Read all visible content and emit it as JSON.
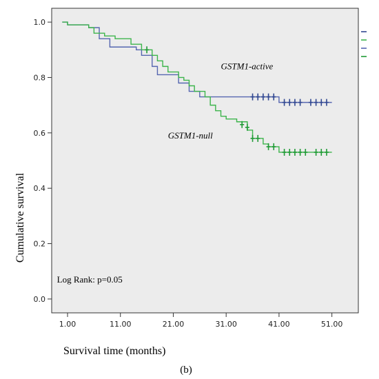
{
  "chart_data": {
    "type": "line",
    "subtype": "kaplan-meier step plot",
    "title": "",
    "xlabel": "Survival time (months)",
    "ylabel": "Cumulative survival",
    "xlim": [
      -2,
      56
    ],
    "ylim": [
      -0.05,
      1.05
    ],
    "x_ticks": [
      1,
      11,
      21,
      31,
      41,
      51
    ],
    "x_tick_labels": [
      "1.00",
      "11.00",
      "21.00",
      "31.00",
      "41.00",
      "51.00"
    ],
    "y_ticks": [
      0.0,
      0.2,
      0.4,
      0.6,
      0.8,
      1.0
    ],
    "y_tick_labels": [
      "0.0",
      "0.2",
      "0.4",
      "0.6",
      "0.8",
      "1.0"
    ],
    "grid": false,
    "background_color": "#ececec",
    "series": [
      {
        "name": "GSTM1-active",
        "color": "#5566b0",
        "censor_color": "#2f4690",
        "steps": [
          [
            0,
            1.0
          ],
          [
            1,
            0.99
          ],
          [
            5,
            0.98
          ],
          [
            7,
            0.94
          ],
          [
            9,
            0.91
          ],
          [
            14,
            0.9
          ],
          [
            15,
            0.88
          ],
          [
            17,
            0.84
          ],
          [
            18,
            0.81
          ],
          [
            22,
            0.78
          ],
          [
            24,
            0.75
          ],
          [
            26,
            0.73
          ],
          [
            41,
            0.71
          ],
          [
            51,
            0.71
          ]
        ],
        "censored": [
          [
            36,
            0.73
          ],
          [
            37,
            0.73
          ],
          [
            38,
            0.73
          ],
          [
            39,
            0.73
          ],
          [
            40,
            0.73
          ],
          [
            42,
            0.71
          ],
          [
            43,
            0.71
          ],
          [
            44,
            0.71
          ],
          [
            45,
            0.71
          ],
          [
            47,
            0.71
          ],
          [
            48,
            0.71
          ],
          [
            49,
            0.71
          ],
          [
            50,
            0.71
          ]
        ]
      },
      {
        "name": "GSTM1-null",
        "color": "#3cb44b",
        "censor_color": "#1f9a35",
        "steps": [
          [
            0,
            1.0
          ],
          [
            1,
            0.99
          ],
          [
            5,
            0.98
          ],
          [
            6,
            0.96
          ],
          [
            8,
            0.95
          ],
          [
            10,
            0.94
          ],
          [
            13,
            0.92
          ],
          [
            15,
            0.9
          ],
          [
            17,
            0.88
          ],
          [
            18,
            0.86
          ],
          [
            19,
            0.84
          ],
          [
            20,
            0.82
          ],
          [
            22,
            0.8
          ],
          [
            23,
            0.79
          ],
          [
            24,
            0.77
          ],
          [
            25,
            0.75
          ],
          [
            27,
            0.73
          ],
          [
            28,
            0.7
          ],
          [
            29,
            0.68
          ],
          [
            30,
            0.66
          ],
          [
            31,
            0.65
          ],
          [
            33,
            0.64
          ],
          [
            35,
            0.61
          ],
          [
            36,
            0.58
          ],
          [
            38,
            0.56
          ],
          [
            39,
            0.55
          ],
          [
            41,
            0.53
          ],
          [
            51,
            0.53
          ]
        ],
        "censored": [
          [
            16,
            0.9
          ],
          [
            34,
            0.63
          ],
          [
            35,
            0.62
          ],
          [
            36,
            0.58
          ],
          [
            37,
            0.58
          ],
          [
            39,
            0.55
          ],
          [
            40,
            0.55
          ],
          [
            42,
            0.53
          ],
          [
            43,
            0.53
          ],
          [
            44,
            0.53
          ],
          [
            45,
            0.53
          ],
          [
            46,
            0.53
          ],
          [
            48,
            0.53
          ],
          [
            49,
            0.53
          ],
          [
            50,
            0.53
          ]
        ]
      }
    ],
    "legend": {
      "placement": "right",
      "items": [
        {
          "color": "#2f4690"
        },
        {
          "color": "#3cb44b"
        },
        {
          "color": "#5566b0"
        },
        {
          "color": "#1f9a35"
        }
      ]
    },
    "annotations": [
      {
        "text": "GSTM1-active",
        "x": 30,
        "y": 0.83,
        "italic": true
      },
      {
        "text": "GSTM1-null",
        "x": 20,
        "y": 0.58,
        "italic": true
      },
      {
        "text": "Log Rank: p=0.05",
        "x": -1,
        "y": 0.06,
        "italic": false
      }
    ],
    "panel_label": "(b)"
  }
}
